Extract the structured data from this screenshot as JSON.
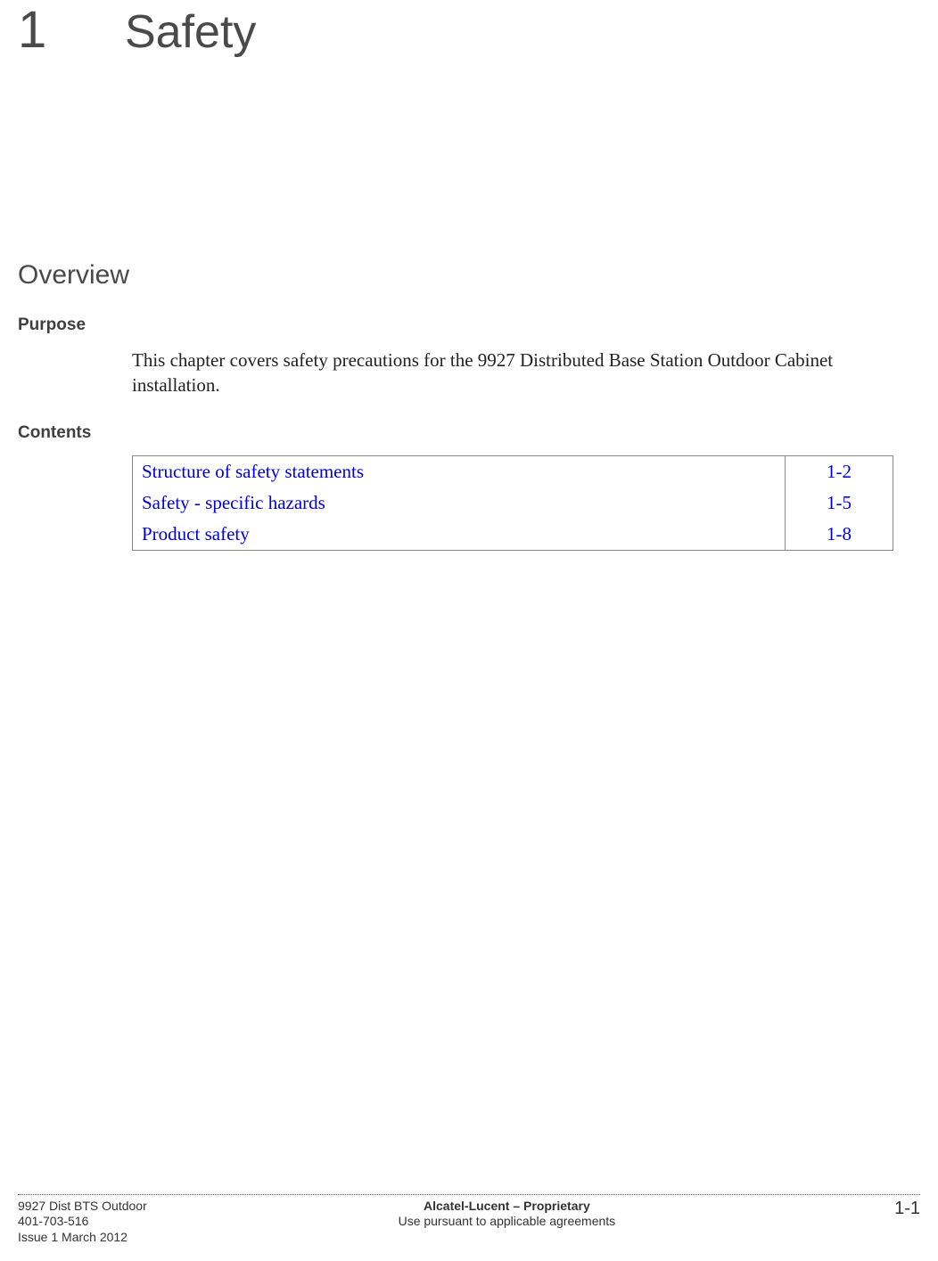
{
  "colors": {
    "text": "#333333",
    "heading": "#4a4a4a",
    "link": "#0000dd",
    "table_border": "#8a8a8a",
    "background": "#ffffff",
    "footer_rule": "#555555"
  },
  "typography": {
    "heading_font": "Trebuchet MS",
    "body_font": "Times New Roman",
    "chapter_number_size_pt": 44,
    "chapter_title_size_pt": 40,
    "overview_size_pt": 23,
    "section_label_size_pt": 14,
    "body_size_pt": 16,
    "footer_size_pt": 11
  },
  "chapter": {
    "number": "1",
    "title": "Safety"
  },
  "overview_heading": "Overview",
  "sections": {
    "purpose": {
      "label": "Purpose",
      "text": "This chapter covers safety precautions for the 9927 Distributed Base Station Outdoor Cabinet installation."
    },
    "contents": {
      "label": "Contents",
      "rows": [
        {
          "title": "Structure of safety statements",
          "page": "1-2"
        },
        {
          "title": "Safety - specific hazards",
          "page": "1-5"
        },
        {
          "title": "Product safety",
          "page": "1-8"
        }
      ]
    }
  },
  "footer": {
    "left": {
      "line1": "9927 Dist BTS Outdoor",
      "line2": "401-703-516",
      "line3": "Issue 1   March 2012"
    },
    "center": {
      "line1": "Alcatel-Lucent – Proprietary",
      "line2": "Use pursuant to applicable agreements"
    },
    "right": "1-1"
  }
}
